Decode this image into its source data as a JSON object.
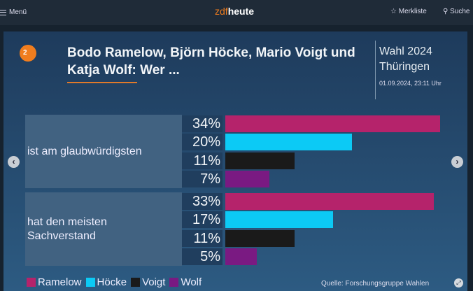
{
  "nav": {
    "menu": "Menü",
    "logo_zdf": "zdf",
    "logo_heute": "heute",
    "bookmarks": "Merkliste",
    "search": "Suche"
  },
  "header": {
    "logo_text": "ZDF",
    "title": "Bodo Ramelow, Björn Höcke, Mario Voigt und Katja Wolf: Wer ...",
    "election_line1": "Wahl 2024",
    "election_line2": "Thüringen",
    "date": "01.09.2024, 23:11 Uhr"
  },
  "source": "Quelle: Forschungsgruppe Wahlen",
  "chart_data": {
    "type": "bar",
    "orientation": "horizontal",
    "categories": [
      "ist am glaubwürdigsten",
      "hat den meisten Sachverstand"
    ],
    "series": [
      {
        "name": "Ramelow",
        "color": "#b5236b",
        "values": [
          34,
          33
        ],
        "labels": [
          "34%",
          "33%"
        ]
      },
      {
        "name": "Höcke",
        "color": "#0ccaf5",
        "values": [
          20,
          17
        ],
        "labels": [
          "20%",
          "17%"
        ]
      },
      {
        "name": "Voigt",
        "color": "#1a1a1a",
        "values": [
          11,
          11
        ],
        "labels": [
          "11%",
          "11%"
        ]
      },
      {
        "name": "Wolf",
        "color": "#7a1a82",
        "values": [
          7,
          5
        ],
        "labels": [
          "7%",
          "5%"
        ]
      }
    ],
    "unit": "%",
    "legend": "bottom-left"
  }
}
